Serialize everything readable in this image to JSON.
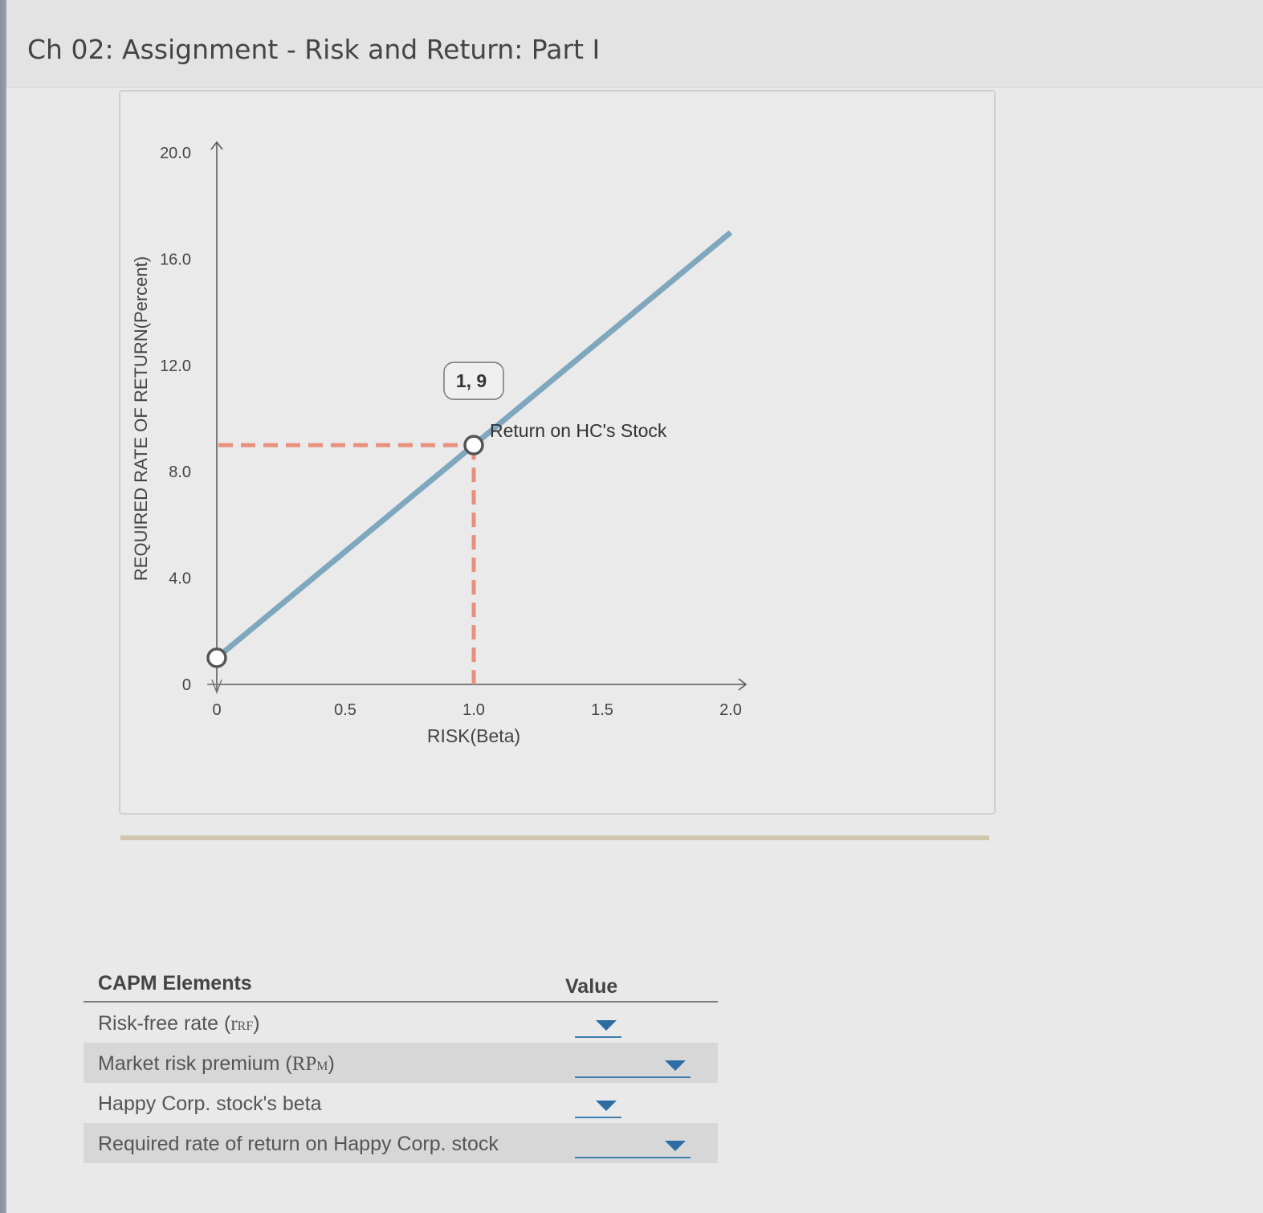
{
  "title": "Ch 02: Assignment - Risk and Return: Part I",
  "chart_data": {
    "type": "line",
    "ylabel": "REQUIRED RATE OF RETURN(Percent)",
    "xlabel": "RISK(Beta)",
    "xlim": [
      0,
      2.0
    ],
    "ylim": [
      0,
      20.0
    ],
    "x_ticks": [
      "0",
      "0.5",
      "1.0",
      "1.5",
      "2.0"
    ],
    "y_ticks": [
      "0",
      "4.0",
      "8.0",
      "12.0",
      "16.0",
      "20.0"
    ],
    "series": [
      {
        "values": [
          [
            0,
            1
          ],
          [
            2.0,
            17
          ]
        ]
      }
    ],
    "points": [
      {
        "x": 0,
        "y": 1
      },
      {
        "x": 1.0,
        "y": 9,
        "label": "Return on HC's Stock",
        "tooltip": "1, 9"
      }
    ],
    "guides": {
      "x": 1.0,
      "y": 9
    },
    "colors": {
      "line": "#7fa7be",
      "guide": "#e8907a",
      "point_border": "#555555"
    }
  },
  "table": {
    "header_left": "CAPM Elements",
    "header_right": "Value",
    "rows": [
      {
        "label_main": "Risk-free rate (",
        "label_sub": "r",
        "label_subsub": "RF",
        "label_end": ")",
        "value": ""
      },
      {
        "label_main": "Market risk premium (",
        "label_sub": "RP",
        "label_subsub": "M",
        "label_end": ")",
        "value": ""
      },
      {
        "label_main": "Happy Corp. stock's beta",
        "value": ""
      },
      {
        "label_main": "Required rate of return on Happy Corp. stock",
        "value": ""
      }
    ]
  }
}
